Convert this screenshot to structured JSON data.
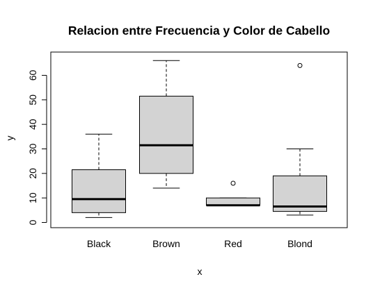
{
  "chart_data": {
    "type": "boxplot",
    "title": "Relacion entre Frecuencia y Color de Cabello",
    "xlabel": "x",
    "ylabel": "y",
    "categories": [
      "Black",
      "Brown",
      "Red",
      "Blond"
    ],
    "ylim": [
      0,
      65
    ],
    "yticks": [
      0,
      10,
      20,
      30,
      40,
      50,
      60
    ],
    "grid": false,
    "legend": "none",
    "boxes": [
      {
        "category": "Black",
        "min": 2,
        "q1": 4,
        "median": 9.5,
        "q3": 21.5,
        "max": 36,
        "outliers": []
      },
      {
        "category": "Brown",
        "min": 14,
        "q1": 20,
        "median": 31.5,
        "q3": 51.5,
        "max": 66,
        "outliers": []
      },
      {
        "category": "Red",
        "min": 7,
        "q1": 7,
        "median": 7,
        "q3": 10,
        "max": 10,
        "outliers": [
          16
        ]
      },
      {
        "category": "Blond",
        "min": 3,
        "q1": 4.5,
        "median": 6.5,
        "q3": 19,
        "max": 30,
        "outliers": [
          64
        ]
      }
    ],
    "colors": {
      "box_fill": "#d3d3d3",
      "stroke": "#000000",
      "background": "#ffffff"
    }
  }
}
